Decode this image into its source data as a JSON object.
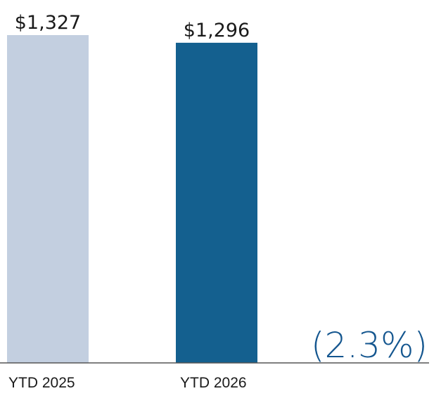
{
  "chart_data": {
    "type": "bar",
    "categories": [
      "YTD 2025",
      "YTD 2026"
    ],
    "values": [
      1327,
      1296
    ],
    "value_labels": [
      "$1,327",
      "$1,296"
    ],
    "colors": [
      "#c3cfe0",
      "#14608f"
    ],
    "change_label": "(2.3%)",
    "change_color": "#14568f",
    "ylim": [
      0,
      1327
    ],
    "grid": false
  }
}
